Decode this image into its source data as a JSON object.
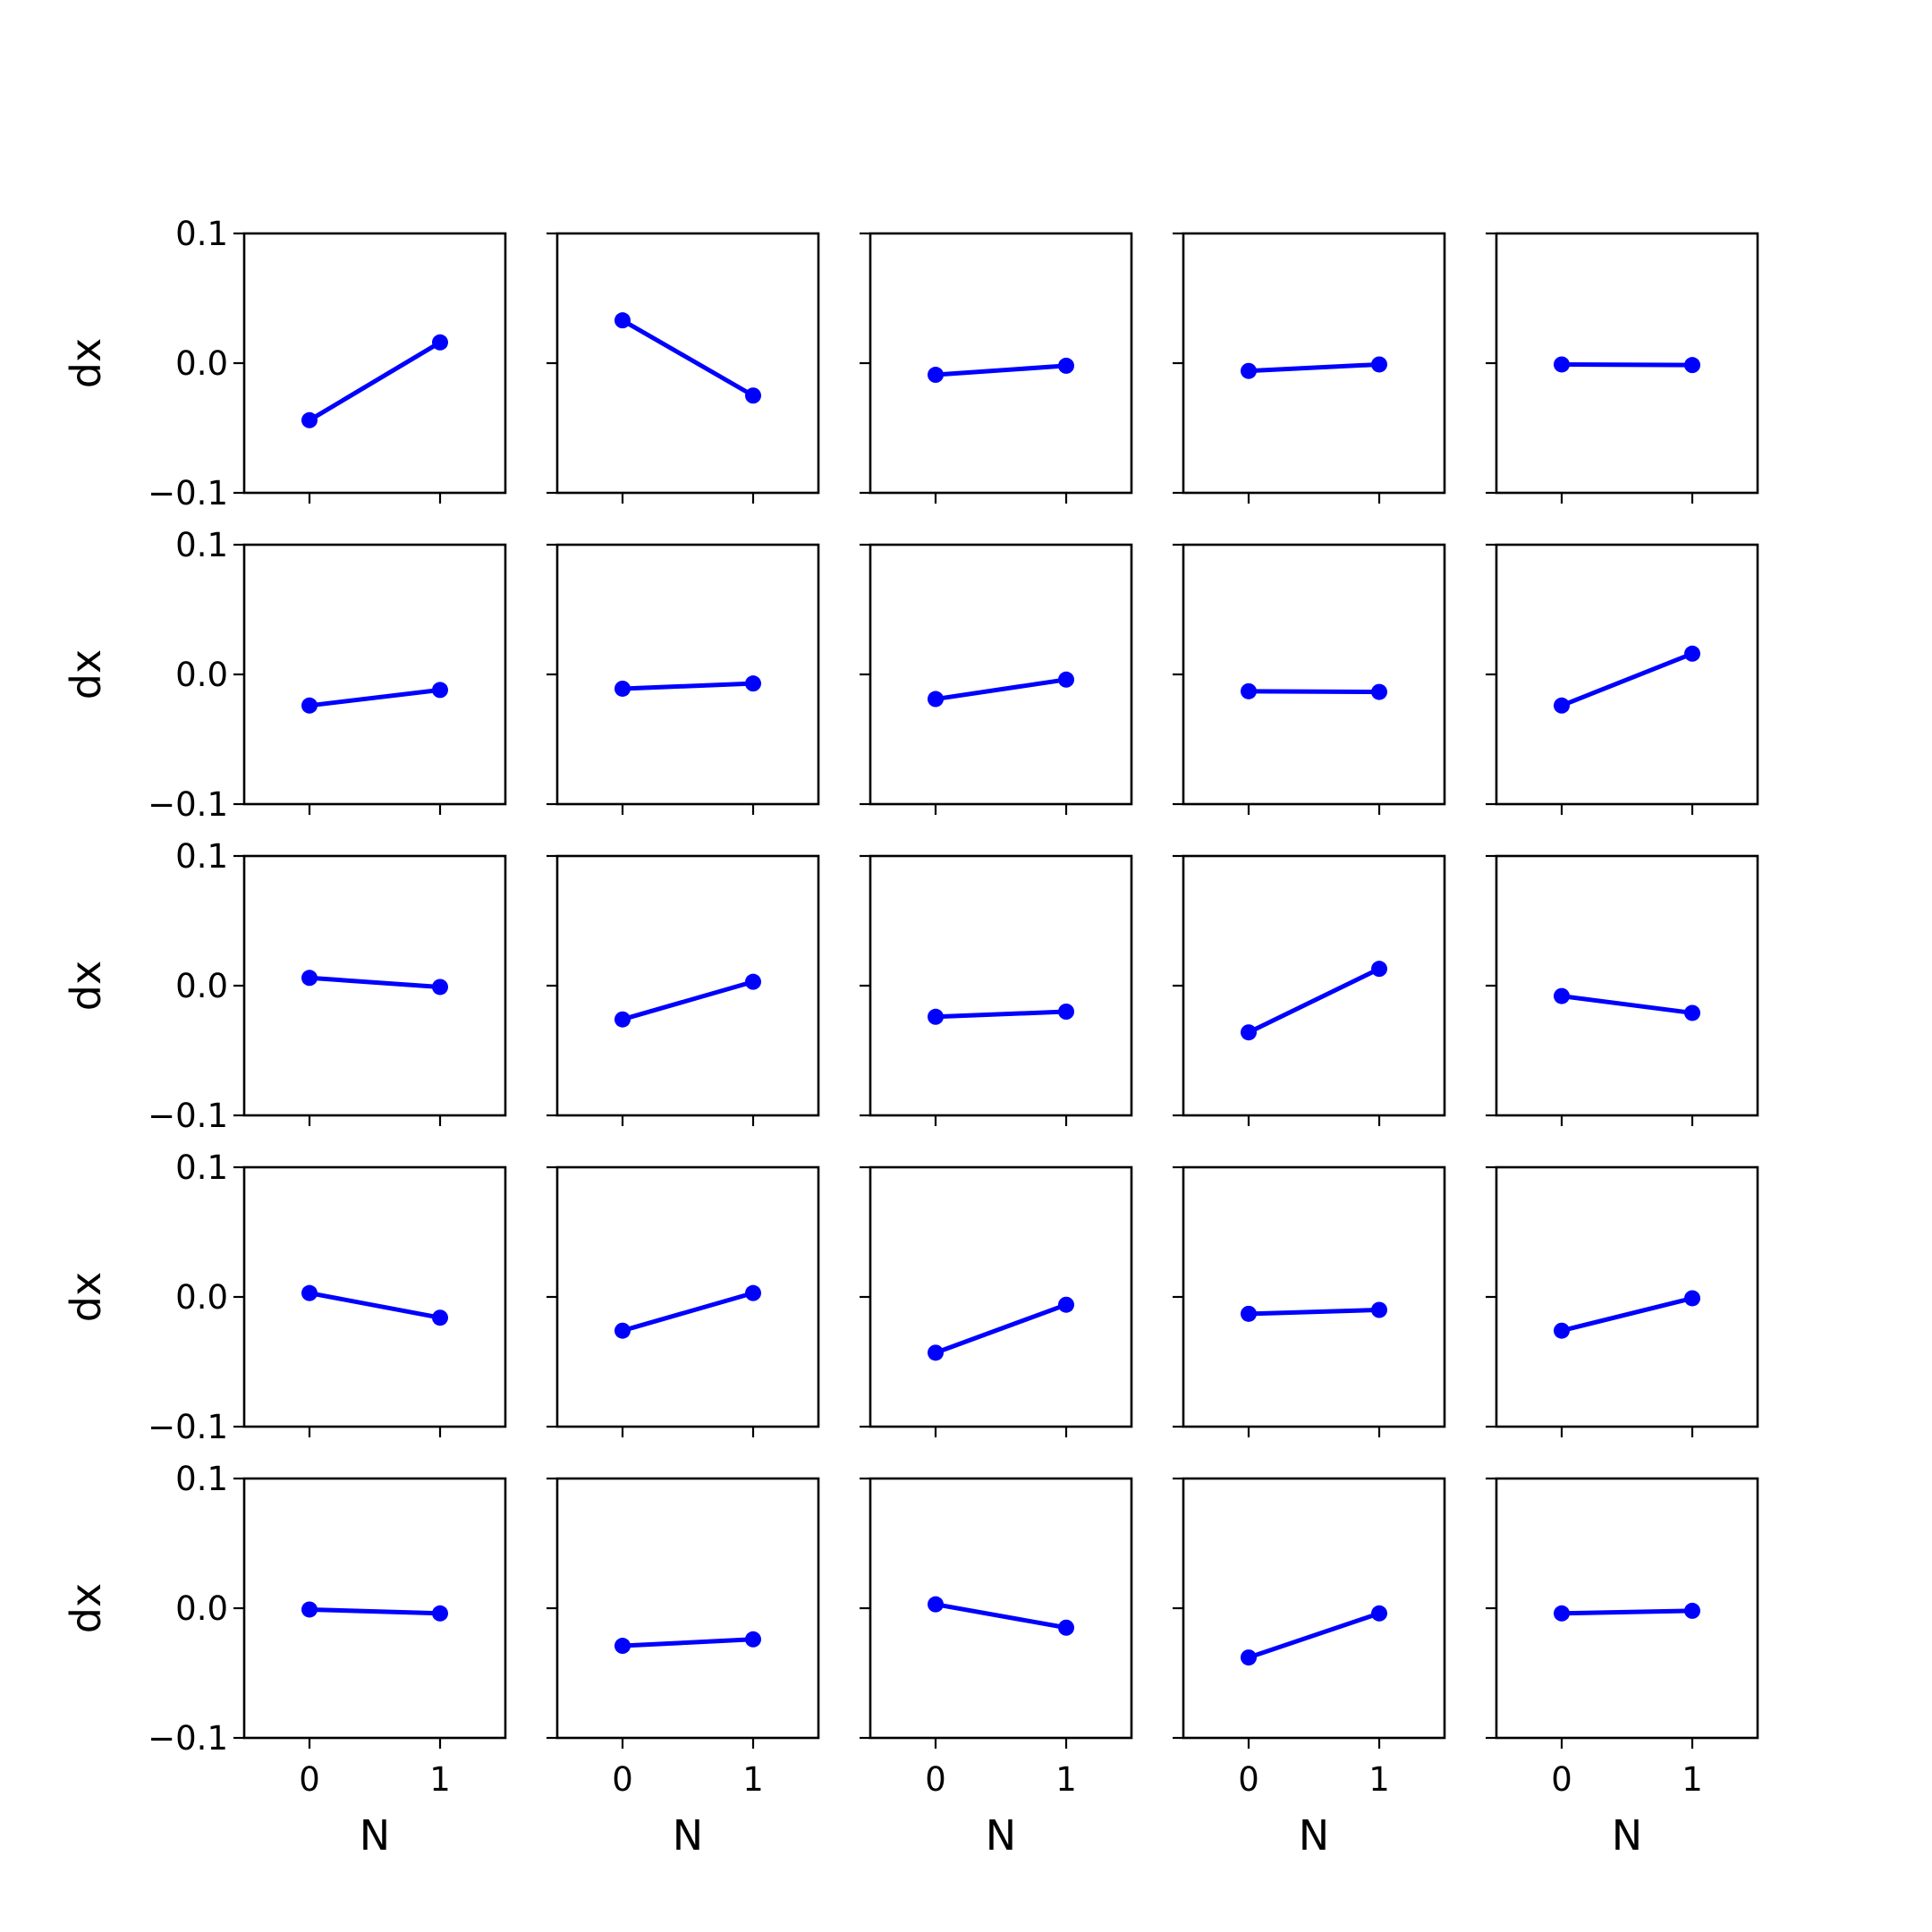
{
  "chart_data": {
    "type": "line",
    "layout": {
      "rows": 5,
      "cols": 5
    },
    "series_color": "#0000ff",
    "xlabel": "N",
    "ylabel": "dx",
    "x_ticks": [
      0,
      1
    ],
    "x_tick_labels": [
      "0",
      "1"
    ],
    "xlim": [
      -0.5,
      1.5
    ],
    "y_ticks": [
      -0.1,
      0.0,
      0.1
    ],
    "y_tick_labels": [
      "−0.1",
      "0.0",
      "0.1"
    ],
    "ylim": [
      -0.1,
      0.1
    ],
    "x": [
      0,
      1
    ],
    "panels": [
      {
        "values": [
          -0.044,
          0.016
        ]
      },
      {
        "values": [
          0.033,
          -0.025
        ]
      },
      {
        "values": [
          -0.009,
          -0.002
        ]
      },
      {
        "values": [
          -0.006,
          -0.001
        ]
      },
      {
        "values": [
          -0.001,
          -0.0015
        ]
      },
      {
        "values": [
          -0.024,
          -0.012
        ]
      },
      {
        "values": [
          -0.011,
          -0.007
        ]
      },
      {
        "values": [
          -0.019,
          -0.004
        ]
      },
      {
        "values": [
          -0.013,
          -0.0135
        ]
      },
      {
        "values": [
          -0.024,
          0.016
        ]
      },
      {
        "values": [
          0.006,
          -0.001
        ]
      },
      {
        "values": [
          -0.026,
          0.003
        ]
      },
      {
        "values": [
          -0.024,
          -0.02
        ]
      },
      {
        "values": [
          -0.036,
          0.013
        ]
      },
      {
        "values": [
          -0.008,
          -0.021
        ]
      },
      {
        "values": [
          0.003,
          -0.016
        ]
      },
      {
        "values": [
          -0.026,
          0.003
        ]
      },
      {
        "values": [
          -0.043,
          -0.006
        ]
      },
      {
        "values": [
          -0.013,
          -0.01
        ]
      },
      {
        "values": [
          -0.026,
          -0.001
        ]
      },
      {
        "values": [
          -0.001,
          -0.004
        ]
      },
      {
        "values": [
          -0.029,
          -0.024
        ]
      },
      {
        "values": [
          0.003,
          -0.015
        ]
      },
      {
        "values": [
          -0.038,
          -0.004
        ]
      },
      {
        "values": [
          -0.004,
          -0.002
        ]
      }
    ]
  }
}
